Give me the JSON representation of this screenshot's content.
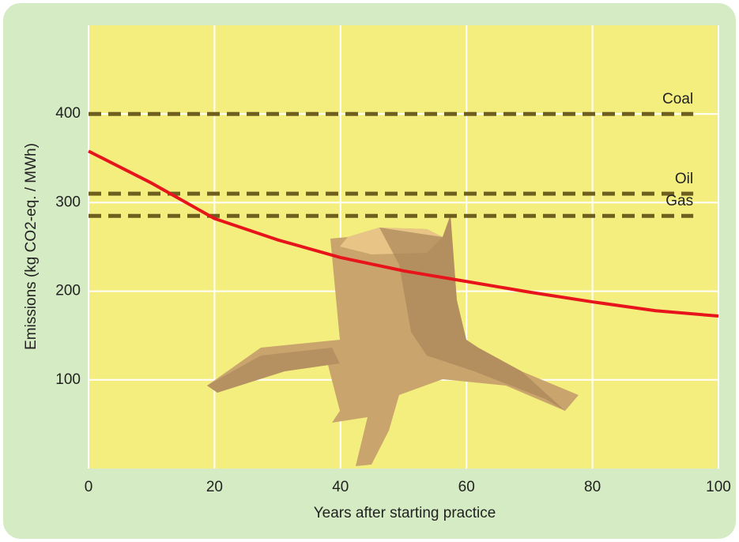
{
  "chart_data": {
    "type": "line",
    "x_label": "Years after starting practice",
    "y_label": "Emissions (kg CO2-eq. / MWh)",
    "x": [
      0,
      10,
      20,
      30,
      40,
      50,
      60,
      70,
      80,
      90,
      100
    ],
    "series": [
      {
        "color": "#e8141c",
        "values": [
          358,
          322,
          282,
          258,
          238,
          223,
          211,
          199,
          188,
          178,
          172
        ]
      }
    ],
    "reference_lines": [
      {
        "label": "Coal",
        "value": 400,
        "color": "#6e5f1e"
      },
      {
        "label": "Oil",
        "value": 310,
        "color": "#6e5f1e"
      },
      {
        "label": "Gas",
        "value": 285,
        "color": "#6e5f1e"
      }
    ],
    "reference_xlim": [
      0,
      96
    ],
    "xlim": [
      0,
      100
    ],
    "ylim": [
      0,
      500
    ],
    "xticks": [
      0,
      20,
      40,
      60,
      80,
      100
    ],
    "yticks": [
      100,
      200,
      300,
      400
    ],
    "grid": true
  }
}
